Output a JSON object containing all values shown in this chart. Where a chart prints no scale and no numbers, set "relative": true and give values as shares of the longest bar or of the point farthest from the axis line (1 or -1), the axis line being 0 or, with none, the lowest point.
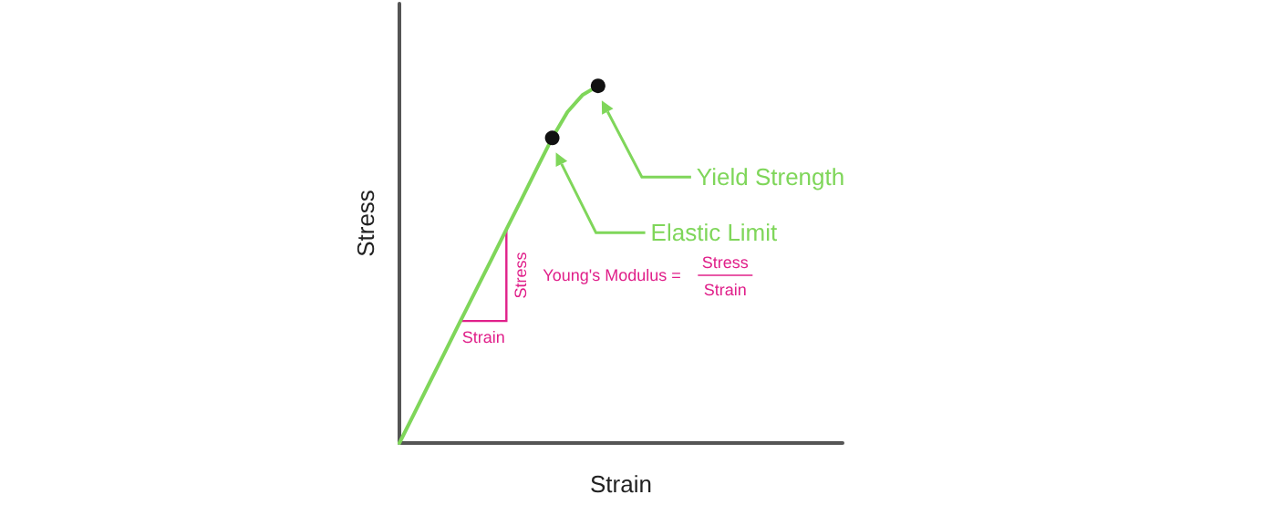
{
  "chart_data": {
    "type": "line",
    "relative": true,
    "xlabel": "Strain",
    "ylabel": "Stress",
    "grid": false,
    "line_style": "solid",
    "categories": [
      null,
      null,
      null,
      null,
      null,
      null,
      null,
      null,
      null,
      null,
      null,
      null,
      null,
      null,
      null,
      null,
      null,
      null,
      null,
      null,
      null,
      null,
      null,
      null,
      null,
      null,
      null,
      null,
      null,
      null
    ],
    "series": [
      {
        "color": "#7fd65a",
        "values": [
          0,
          0.085,
          0.171,
          0.256,
          0.342,
          0.427,
          0.512,
          0.598,
          0.683,
          0.769,
          0.854,
          0.927,
          0.975,
          1,
          null,
          null,
          null,
          null,
          null,
          null,
          null,
          null,
          null,
          null,
          null,
          null,
          null,
          null,
          null,
          null
        ]
      }
    ],
    "annotations": [
      "Yield Strength",
      "Elastic Limit",
      "Stress",
      "Strain",
      "Young's Modulus =",
      "Stress",
      "Strain"
    ]
  }
}
